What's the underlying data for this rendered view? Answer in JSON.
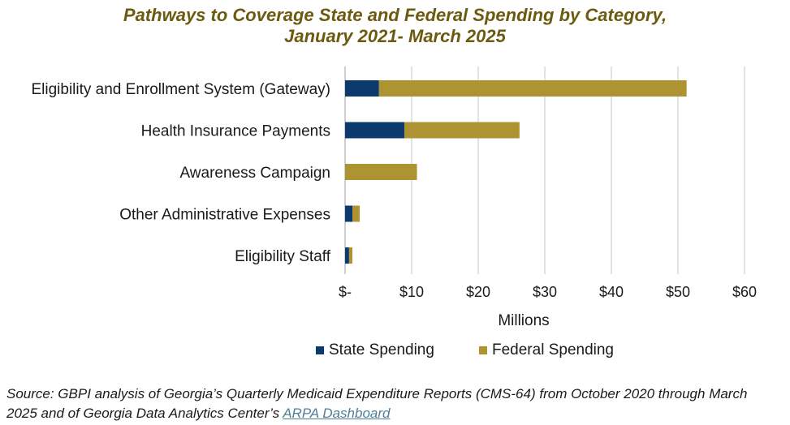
{
  "title_line1": "Pathways to Coverage State and Federal Spending by Category,",
  "title_line2": "January 2021- March 2025",
  "source_text": "Source: GBPI analysis of Georgia’s Quarterly Medicaid Expenditure Reports (CMS-64) from October 2020 through March 2025 and of Georgia Data Analytics Center’s ",
  "source_link": "ARPA Dashboard",
  "colors": {
    "state": "#0d3a6e",
    "federal": "#ad9331",
    "grid": "#d9d9d9",
    "title": "#6b5a0f"
  },
  "chart_data": {
    "type": "bar",
    "orientation": "horizontal",
    "stacked": true,
    "categories": [
      "Eligibility and Enrollment System (Gateway)",
      "Health Insurance Payments",
      "Awareness Campaign",
      "Other Administrative Expenses",
      "Eligibility Staff"
    ],
    "series": [
      {
        "name": "State Spending",
        "values": [
          5.1,
          8.9,
          0,
          1.1,
          0.6
        ]
      },
      {
        "name": "Federal Spending",
        "values": [
          46.2,
          17.3,
          10.8,
          1.1,
          0.5
        ]
      }
    ],
    "x_ticks": [
      0,
      10,
      20,
      30,
      40,
      50,
      60
    ],
    "x_tick_labels": [
      "$-",
      "$10",
      "$20",
      "$30",
      "$40",
      "$50",
      "$60"
    ],
    "xlabel": "Millions",
    "xlim": [
      0,
      60
    ],
    "grid": true,
    "legend_position": "bottom"
  }
}
